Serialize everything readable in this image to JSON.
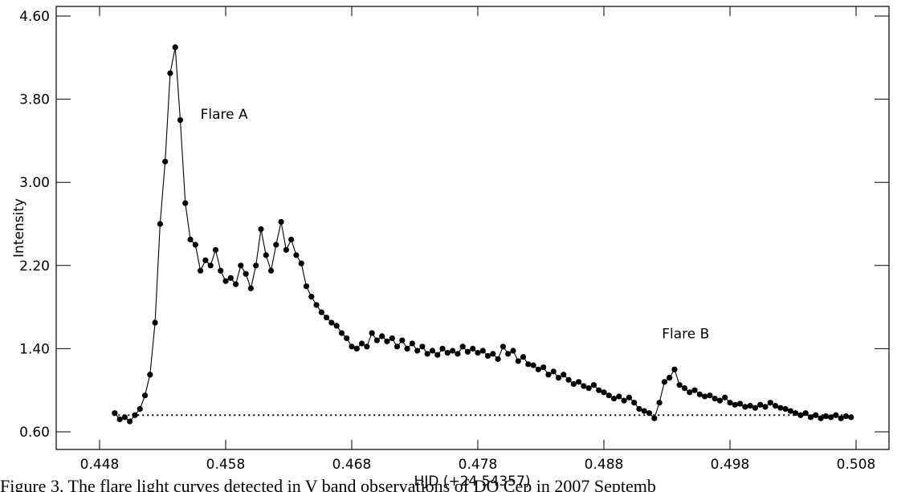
{
  "chart_data": {
    "type": "line",
    "xlabel": "HJD (+24 54357)",
    "ylabel": "Intensity",
    "xlim": [
      0.44456,
      0.51061
    ],
    "ylim": [
      0.43,
      4.693
    ],
    "xticks": [
      0.448,
      0.458,
      0.468,
      0.478,
      0.488,
      0.498,
      0.508
    ],
    "yticks": [
      {
        "value": 0.6,
        "label": "0.60"
      },
      {
        "value": 1.4,
        "label": "1.40"
      },
      {
        "value": 2.2,
        "label": "2.20"
      },
      {
        "value": 3.0,
        "label": "3.00"
      },
      {
        "value": 3.8,
        "label": "3.80"
      },
      {
        "value": 4.6,
        "label": "4.60"
      }
    ],
    "color": "#000000",
    "annotations": [
      {
        "text": "Flare A",
        "x": 0.456,
        "y": 3.61
      },
      {
        "text": "Flare B",
        "x": 0.4926,
        "y": 1.5
      }
    ],
    "reference_line": {
      "y": 0.76,
      "x": [
        0.4491,
        0.5078
      ]
    },
    "caption": "Figure 3. The flare light curves detected in V band observations of DO Cep in 2007 Septemb",
    "x": [
      0.4492,
      0.4496,
      0.45,
      0.4504,
      0.4508,
      0.4512,
      0.4516,
      0.452,
      0.4524,
      0.4528,
      0.4532,
      0.4536,
      0.454,
      0.4544,
      0.4548,
      0.4552,
      0.4556,
      0.456,
      0.4564,
      0.4568,
      0.4572,
      0.4576,
      0.458,
      0.4584,
      0.4588,
      0.4592,
      0.4596,
      0.46,
      0.4604,
      0.4608,
      0.4612,
      0.4616,
      0.462,
      0.4624,
      0.4628,
      0.4632,
      0.4636,
      0.464,
      0.4644,
      0.4648,
      0.4652,
      0.4656,
      0.466,
      0.4664,
      0.4668,
      0.4672,
      0.4676,
      0.468,
      0.4684,
      0.4688,
      0.4692,
      0.4696,
      0.47,
      0.4704,
      0.4708,
      0.4712,
      0.4716,
      0.472,
      0.4724,
      0.4728,
      0.4732,
      0.4736,
      0.474,
      0.4744,
      0.4748,
      0.4752,
      0.4756,
      0.476,
      0.4764,
      0.4768,
      0.4772,
      0.4776,
      0.478,
      0.4784,
      0.4788,
      0.4792,
      0.4796,
      0.48,
      0.4804,
      0.4808,
      0.4812,
      0.4816,
      0.482,
      0.4824,
      0.4828,
      0.4832,
      0.4836,
      0.484,
      0.4844,
      0.4848,
      0.4852,
      0.4856,
      0.486,
      0.4864,
      0.4868,
      0.4872,
      0.4876,
      0.488,
      0.4884,
      0.4888,
      0.4892,
      0.4896,
      0.49,
      0.4904,
      0.4908,
      0.4912,
      0.4916,
      0.492,
      0.4924,
      0.4928,
      0.4932,
      0.4936,
      0.494,
      0.4944,
      0.4948,
      0.4952,
      0.4956,
      0.496,
      0.4964,
      0.4968,
      0.4972,
      0.4976,
      0.498,
      0.4984,
      0.4988,
      0.4992,
      0.4996,
      0.5,
      0.5004,
      0.5008,
      0.5012,
      0.5016,
      0.502,
      0.5024,
      0.5028,
      0.5032,
      0.5036,
      0.504,
      0.5044,
      0.5048,
      0.5052,
      0.5056,
      0.506,
      0.5064,
      0.5068,
      0.5072,
      0.5076
    ],
    "values": [
      0.78,
      0.72,
      0.74,
      0.7,
      0.76,
      0.82,
      0.95,
      1.15,
      1.65,
      2.6,
      3.2,
      4.05,
      4.3,
      3.6,
      2.8,
      2.45,
      2.4,
      2.15,
      2.25,
      2.2,
      2.35,
      2.15,
      2.05,
      2.08,
      2.02,
      2.2,
      2.12,
      1.98,
      2.2,
      2.55,
      2.3,
      2.15,
      2.4,
      2.62,
      2.35,
      2.45,
      2.3,
      2.22,
      2.0,
      1.9,
      1.82,
      1.75,
      1.7,
      1.65,
      1.62,
      1.55,
      1.5,
      1.42,
      1.4,
      1.45,
      1.42,
      1.55,
      1.48,
      1.52,
      1.47,
      1.5,
      1.42,
      1.48,
      1.4,
      1.45,
      1.38,
      1.42,
      1.35,
      1.38,
      1.34,
      1.4,
      1.36,
      1.38,
      1.35,
      1.42,
      1.37,
      1.4,
      1.36,
      1.38,
      1.33,
      1.35,
      1.3,
      1.42,
      1.35,
      1.38,
      1.28,
      1.32,
      1.25,
      1.24,
      1.2,
      1.22,
      1.15,
      1.18,
      1.12,
      1.15,
      1.1,
      1.06,
      1.08,
      1.04,
      1.02,
      1.05,
      1.0,
      0.98,
      0.95,
      0.92,
      0.94,
      0.9,
      0.93,
      0.88,
      0.82,
      0.8,
      0.78,
      0.73,
      0.88,
      1.08,
      1.12,
      1.2,
      1.05,
      1.02,
      0.98,
      1.0,
      0.96,
      0.94,
      0.95,
      0.92,
      0.9,
      0.93,
      0.88,
      0.86,
      0.87,
      0.84,
      0.85,
      0.83,
      0.86,
      0.84,
      0.88,
      0.85,
      0.83,
      0.82,
      0.8,
      0.78,
      0.76,
      0.78,
      0.74,
      0.76,
      0.73,
      0.75,
      0.74,
      0.76,
      0.73,
      0.75,
      0.74
    ]
  }
}
